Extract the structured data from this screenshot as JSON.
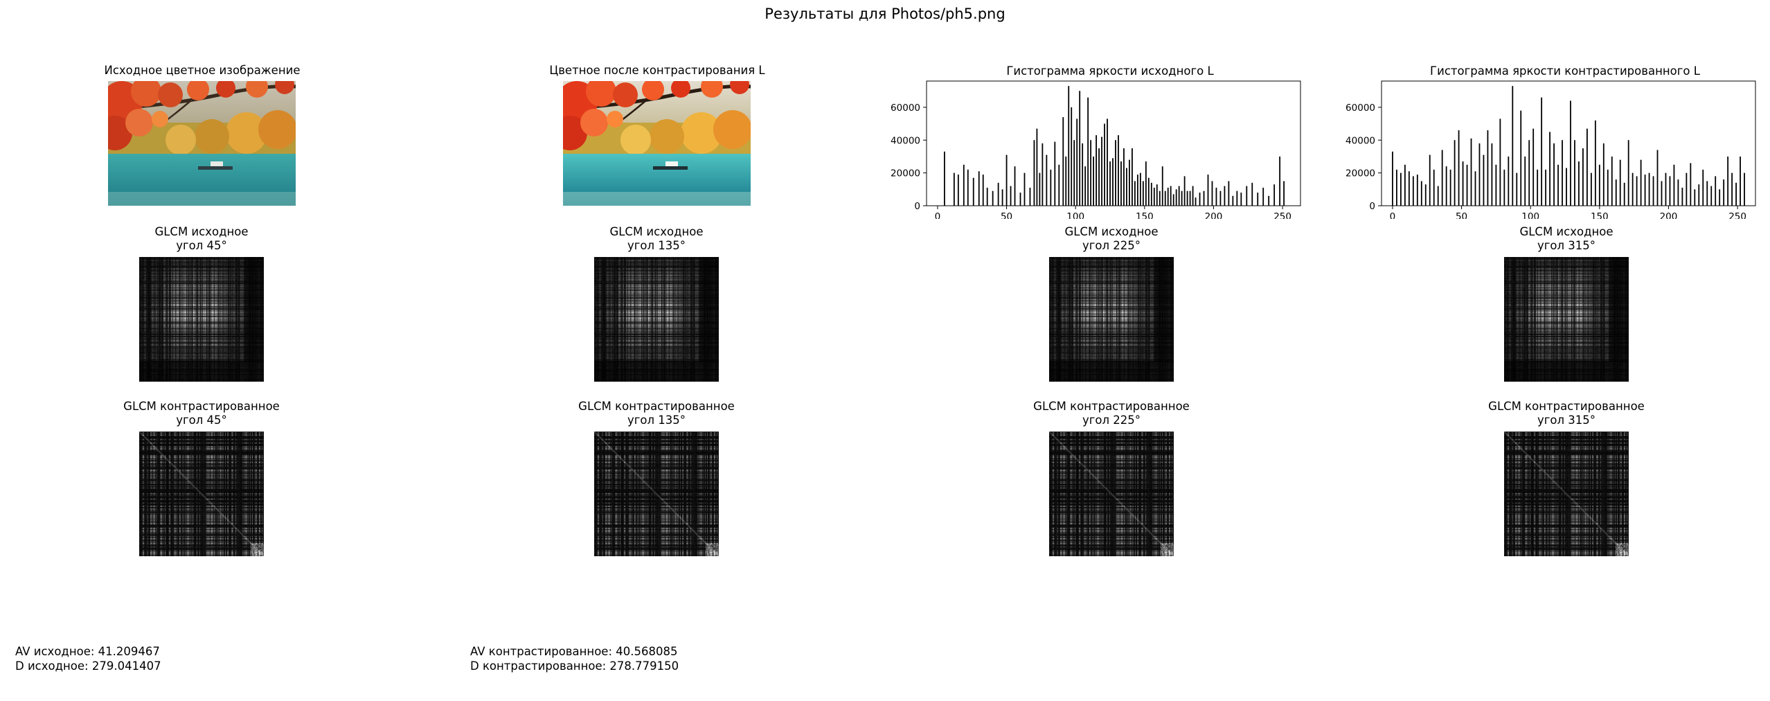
{
  "suptitle": "Результаты для Photos/ph5.png",
  "images": {
    "original_title": "Исходное цветное изображение",
    "contrasted_title": "Цветное после контрастирования L"
  },
  "glcm": {
    "original_label": "GLCM исходное",
    "contrasted_label": "GLCM контрастированное",
    "angles": [
      "угол 45°",
      "угол 135°",
      "угол 225°",
      "угол 315°"
    ]
  },
  "stats": {
    "original": {
      "av": "AV исходное: 41.209467",
      "d": "D исходное: 279.041407"
    },
    "contrasted": {
      "av": "AV контрастированное: 40.568085",
      "d": "D контрастированное: 278.779150"
    }
  },
  "chart_data": [
    {
      "type": "bar",
      "title": "Гистограмма яркости исходного L",
      "xlabel": "",
      "ylabel": "",
      "xlim": [
        -8,
        263
      ],
      "ylim": [
        0,
        76000
      ],
      "xticks": [
        0,
        50,
        100,
        150,
        200,
        250
      ],
      "yticks": [
        0,
        20000,
        40000,
        60000
      ],
      "x": [
        5,
        12,
        15,
        19,
        22,
        26,
        30,
        33,
        36,
        40,
        44,
        47,
        50,
        53,
        56,
        60,
        63,
        67,
        70,
        72,
        74,
        76,
        79,
        82,
        85,
        88,
        91,
        93,
        95,
        97,
        99,
        101,
        103,
        105,
        107,
        109,
        111,
        113,
        115,
        117,
        119,
        121,
        123,
        125,
        127,
        129,
        131,
        133,
        135,
        137,
        139,
        141,
        143,
        145,
        147,
        149,
        151,
        153,
        155,
        157,
        159,
        161,
        163,
        165,
        167,
        169,
        171,
        173,
        175,
        177,
        179,
        181,
        183,
        185,
        187,
        190,
        193,
        196,
        199,
        202,
        205,
        208,
        211,
        214,
        217,
        220,
        224,
        228,
        232,
        236,
        240,
        244,
        248,
        251
      ],
      "values": [
        33000,
        20000,
        19000,
        25000,
        22000,
        17000,
        21000,
        19000,
        11000,
        9000,
        14000,
        10000,
        31000,
        12000,
        24000,
        8000,
        20000,
        11000,
        40000,
        47000,
        20000,
        38000,
        31000,
        22000,
        39000,
        25000,
        54000,
        30000,
        73000,
        60000,
        40000,
        53000,
        70000,
        38000,
        24000,
        66000,
        40000,
        30000,
        43000,
        35000,
        42000,
        50000,
        53000,
        27000,
        29000,
        40000,
        43000,
        27000,
        35000,
        23000,
        28000,
        35000,
        15000,
        19000,
        20000,
        15000,
        27000,
        17000,
        14000,
        11000,
        13000,
        9000,
        24000,
        9000,
        11000,
        12000,
        7000,
        10000,
        12000,
        9000,
        18000,
        9000,
        9000,
        12000,
        5000,
        8000,
        9000,
        19000,
        15000,
        11000,
        9000,
        12000,
        15000,
        6000,
        9000,
        8000,
        12000,
        14000,
        8000,
        11000,
        6000,
        13000,
        30000,
        15000
      ]
    },
    {
      "type": "bar",
      "title": "Гистограмма яркости контрастированного L",
      "xlabel": "",
      "ylabel": "",
      "xlim": [
        -8,
        263
      ],
      "ylim": [
        0,
        76000
      ],
      "xticks": [
        0,
        50,
        100,
        150,
        200,
        250
      ],
      "yticks": [
        0,
        20000,
        40000,
        60000
      ],
      "x": [
        0,
        3,
        6,
        9,
        12,
        15,
        18,
        21,
        24,
        27,
        30,
        33,
        36,
        39,
        42,
        45,
        48,
        51,
        54,
        57,
        60,
        63,
        66,
        69,
        72,
        75,
        78,
        81,
        84,
        87,
        90,
        93,
        96,
        99,
        102,
        105,
        108,
        111,
        114,
        117,
        120,
        123,
        126,
        129,
        132,
        135,
        138,
        141,
        144,
        147,
        150,
        153,
        156,
        159,
        162,
        165,
        168,
        171,
        174,
        177,
        180,
        183,
        186,
        189,
        192,
        195,
        198,
        201,
        204,
        207,
        210,
        213,
        216,
        219,
        222,
        225,
        228,
        231,
        234,
        237,
        240,
        243,
        246,
        249,
        252,
        255
      ],
      "values": [
        33000,
        22000,
        20000,
        25000,
        21000,
        18000,
        19000,
        15000,
        13000,
        31000,
        22000,
        12000,
        34000,
        24000,
        22000,
        40000,
        46000,
        27000,
        25000,
        41000,
        21000,
        38000,
        31000,
        46000,
        38000,
        25000,
        53000,
        22000,
        30000,
        73000,
        20000,
        58000,
        30000,
        40000,
        47000,
        22000,
        66000,
        22000,
        45000,
        38000,
        25000,
        40000,
        23000,
        64000,
        40000,
        27000,
        35000,
        47000,
        20000,
        52000,
        25000,
        38000,
        22000,
        30000,
        16000,
        28000,
        14000,
        40000,
        20000,
        18000,
        28000,
        19000,
        20000,
        18000,
        34000,
        15000,
        20000,
        18000,
        25000,
        16000,
        11000,
        20000,
        26000,
        10000,
        13000,
        22000,
        15000,
        12000,
        18000,
        10000,
        16000,
        30000,
        20000,
        14000,
        30000,
        20000
      ]
    }
  ]
}
